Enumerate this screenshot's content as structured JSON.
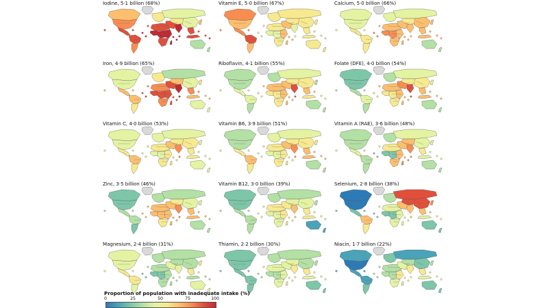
{
  "palette": [
    "#2c7bb6",
    "#4aa3b8",
    "#7dc6a8",
    "#b3e0a4",
    "#e3f3a2",
    "#f7e98f",
    "#fdbe6e",
    "#f88d52",
    "#e0503b",
    "#c22a32"
  ],
  "ocean_color": "#ffffff",
  "no_data_color": "#d9d9d9",
  "panels": [
    {
      "title": "Iodine, 5·1 billion (68%)",
      "levels": {
        "na": 7,
        "ca": 6,
        "greenland": -1,
        "ca_am": 8,
        "sa_n": 8,
        "sa_s": 7,
        "europe": 5,
        "russia": 4,
        "n_africa": 8,
        "w_africa": 9,
        "c_africa": 9,
        "e_africa": 9,
        "s_africa": 8,
        "mideast": 8,
        "c_asia": 5,
        "india": 9,
        "china": 4,
        "se_asia": 8,
        "japan": 6,
        "indonesia": 8,
        "australia": 3,
        "nz": 3,
        "madagascar": 9
      }
    },
    {
      "title": "Vitamin E, 5·0 billion (67%)",
      "levels": {
        "na": 6,
        "ca": 7,
        "greenland": -1,
        "ca_am": 7,
        "sa_n": 8,
        "sa_s": 6,
        "europe": 5,
        "russia": 5,
        "n_africa": 5,
        "w_africa": 4,
        "c_africa": 4,
        "e_africa": 6,
        "s_africa": 5,
        "mideast": 6,
        "c_asia": 5,
        "india": 4,
        "china": 5,
        "se_asia": 5,
        "japan": 5,
        "indonesia": 5,
        "australia": 5,
        "nz": 5,
        "madagascar": 6
      }
    },
    {
      "title": "Calcium, 5·0 billion (66%)",
      "levels": {
        "na": 4,
        "ca": 4,
        "greenland": -1,
        "ca_am": 5,
        "sa_n": 5,
        "sa_s": 5,
        "europe": 4,
        "russia": 4,
        "n_africa": 6,
        "w_africa": 7,
        "c_africa": 7,
        "e_africa": 6,
        "s_africa": 6,
        "mideast": 6,
        "c_asia": 5,
        "india": 6,
        "china": 6,
        "se_asia": 6,
        "japan": 6,
        "indonesia": 6,
        "australia": 3,
        "nz": 3,
        "madagascar": 6
      }
    },
    {
      "title": "Iron, 4·9 billion (65%)",
      "levels": {
        "na": 4,
        "ca": 4,
        "greenland": -1,
        "ca_am": 6,
        "sa_n": 6,
        "sa_s": 5,
        "europe": 5,
        "russia": 3,
        "n_africa": 7,
        "w_africa": 8,
        "c_africa": 8,
        "e_africa": 8,
        "s_africa": 7,
        "mideast": 8,
        "c_asia": 6,
        "india": 9,
        "china": 4,
        "se_asia": 7,
        "japan": 5,
        "indonesia": 6,
        "australia": 4,
        "nz": 4,
        "madagascar": 8
      }
    },
    {
      "title": "Riboflavin, 4·1 billion (55%)",
      "levels": {
        "na": 3,
        "ca": 3,
        "greenland": -1,
        "ca_am": 4,
        "sa_n": 4,
        "sa_s": 3,
        "europe": 3,
        "russia": 4,
        "n_africa": 6,
        "w_africa": 5,
        "c_africa": 5,
        "e_africa": 6,
        "s_africa": 5,
        "mideast": 6,
        "c_asia": 5,
        "india": 8,
        "china": 5,
        "se_asia": 6,
        "japan": 3,
        "indonesia": 5,
        "australia": 3,
        "nz": 3,
        "madagascar": 6
      }
    },
    {
      "title": "Folate (DFE), 4·0 billion (54%)",
      "levels": {
        "na": 2,
        "ca": 2,
        "greenland": -1,
        "ca_am": 3,
        "sa_n": 4,
        "sa_s": 3,
        "europe": 3,
        "russia": 4,
        "n_africa": 6,
        "w_africa": 5,
        "c_africa": 5,
        "e_africa": 6,
        "s_africa": 5,
        "mideast": 7,
        "c_asia": 5,
        "india": 8,
        "china": 5,
        "se_asia": 6,
        "japan": 4,
        "indonesia": 6,
        "australia": 3,
        "nz": 3,
        "madagascar": 6
      }
    },
    {
      "title": "Vitamin C, 4·0 billion (53%)",
      "levels": {
        "na": 4,
        "ca": 4,
        "greenland": -1,
        "ca_am": 5,
        "sa_n": 6,
        "sa_s": 5,
        "europe": 4,
        "russia": 4,
        "n_africa": 5,
        "w_africa": 4,
        "c_africa": 4,
        "e_africa": 5,
        "s_africa": 5,
        "mideast": 6,
        "c_asia": 5,
        "india": 7,
        "china": 5,
        "se_asia": 5,
        "japan": 4,
        "indonesia": 5,
        "australia": 4,
        "nz": 4,
        "madagascar": 5
      }
    },
    {
      "title": "Vitamin B6, 3·9 billion (51%)",
      "levels": {
        "na": 3,
        "ca": 3,
        "greenland": -1,
        "ca_am": 5,
        "sa_n": 6,
        "sa_s": 5,
        "europe": 4,
        "russia": 4,
        "n_africa": 5,
        "w_africa": 4,
        "c_africa": 4,
        "e_africa": 5,
        "s_africa": 5,
        "mideast": 6,
        "c_asia": 5,
        "india": 7,
        "china": 5,
        "se_asia": 6,
        "japan": 5,
        "indonesia": 6,
        "australia": 3,
        "nz": 3,
        "madagascar": 5
      }
    },
    {
      "title": "Vitamin A (RAE), 3·6 billion (48%)",
      "levels": {
        "na": 3,
        "ca": 3,
        "greenland": -1,
        "ca_am": 4,
        "sa_n": 3,
        "sa_s": 3,
        "europe": 3,
        "russia": 4,
        "n_africa": 5,
        "w_africa": 2,
        "c_africa": 2,
        "e_africa": 6,
        "s_africa": 6,
        "mideast": 6,
        "c_asia": 6,
        "india": 7,
        "china": 4,
        "se_asia": 5,
        "japan": 4,
        "indonesia": 4,
        "australia": 3,
        "nz": 3,
        "madagascar": 7
      }
    },
    {
      "title": "Zinc, 3·5 billion (46%)",
      "levels": {
        "na": 2,
        "ca": 2,
        "greenland": -1,
        "ca_am": 3,
        "sa_n": 3,
        "sa_s": 2,
        "europe": 3,
        "russia": 3,
        "n_africa": 6,
        "w_africa": 6,
        "c_africa": 6,
        "e_africa": 6,
        "s_africa": 5,
        "mideast": 6,
        "c_asia": 5,
        "india": 7,
        "china": 4,
        "se_asia": 6,
        "japan": 4,
        "indonesia": 6,
        "australia": 3,
        "nz": 3,
        "madagascar": 6
      }
    },
    {
      "title": "Vitamin B12, 3·0 billion (39%)",
      "levels": {
        "na": 2,
        "ca": 2,
        "greenland": -1,
        "ca_am": 3,
        "sa_n": 3,
        "sa_s": 3,
        "europe": 3,
        "russia": 3,
        "n_africa": 5,
        "w_africa": 4,
        "c_africa": 4,
        "e_africa": 5,
        "s_africa": 4,
        "mideast": 5,
        "c_asia": 4,
        "india": 6,
        "china": 4,
        "se_asia": 5,
        "japan": 3,
        "indonesia": 5,
        "australia": 1,
        "nz": 1,
        "madagascar": 5
      }
    },
    {
      "title": "Selenium, 2·8 billion (38%)",
      "levels": {
        "na": 0,
        "ca": 0,
        "greenland": -1,
        "ca_am": 2,
        "sa_n": 6,
        "sa_s": 5,
        "europe": 3,
        "russia": 8,
        "n_africa": 4,
        "w_africa": 2,
        "c_africa": 2,
        "e_africa": 4,
        "s_africa": 4,
        "mideast": 6,
        "c_asia": 8,
        "india": 6,
        "china": 8,
        "se_asia": 6,
        "japan": 7,
        "indonesia": 4,
        "australia": 2,
        "nz": 2,
        "madagascar": 4
      }
    },
    {
      "title": "Magnesium, 2·4 billion (31%)",
      "levels": {
        "na": 4,
        "ca": 4,
        "greenland": -1,
        "ca_am": 5,
        "sa_n": 5,
        "sa_s": 4,
        "europe": 3,
        "russia": 3,
        "n_africa": 3,
        "w_africa": 2,
        "c_africa": 2,
        "e_africa": 3,
        "s_africa": 3,
        "mideast": 4,
        "c_asia": 3,
        "india": 4,
        "china": 3,
        "se_asia": 5,
        "japan": 5,
        "indonesia": 3,
        "australia": 4,
        "nz": 4,
        "madagascar": 3
      }
    },
    {
      "title": "Thiamin, 2·2 billion (30%)",
      "levels": {
        "na": 2,
        "ca": 2,
        "greenland": -1,
        "ca_am": 2,
        "sa_n": 2,
        "sa_s": 2,
        "europe": 3,
        "russia": 3,
        "n_africa": 4,
        "w_africa": 3,
        "c_africa": 3,
        "e_africa": 4,
        "s_africa": 4,
        "mideast": 4,
        "c_asia": 4,
        "india": 5,
        "china": 3,
        "se_asia": 5,
        "japan": 3,
        "indonesia": 4,
        "australia": 2,
        "nz": 2,
        "madagascar": 4
      }
    },
    {
      "title": "Niacin, 1·7 billion (22%)",
      "levels": {
        "na": 0,
        "ca": 1,
        "greenland": -1,
        "ca_am": 1,
        "sa_n": 1,
        "sa_s": 2,
        "europe": 2,
        "russia": 1,
        "n_africa": 3,
        "w_africa": 3,
        "c_africa": 3,
        "e_africa": 5,
        "s_africa": 4,
        "mideast": 4,
        "c_asia": 3,
        "india": 5,
        "china": 2,
        "se_asia": 5,
        "japan": 3,
        "indonesia": 4,
        "australia": 2,
        "nz": 2,
        "madagascar": 5
      }
    }
  ],
  "legend": {
    "title": "Proportion of population with inadequate intake (%)",
    "ticks": [
      "0",
      "25",
      "50",
      "75",
      "100"
    ],
    "tick_values": [
      0,
      25,
      50,
      75,
      100
    ]
  }
}
